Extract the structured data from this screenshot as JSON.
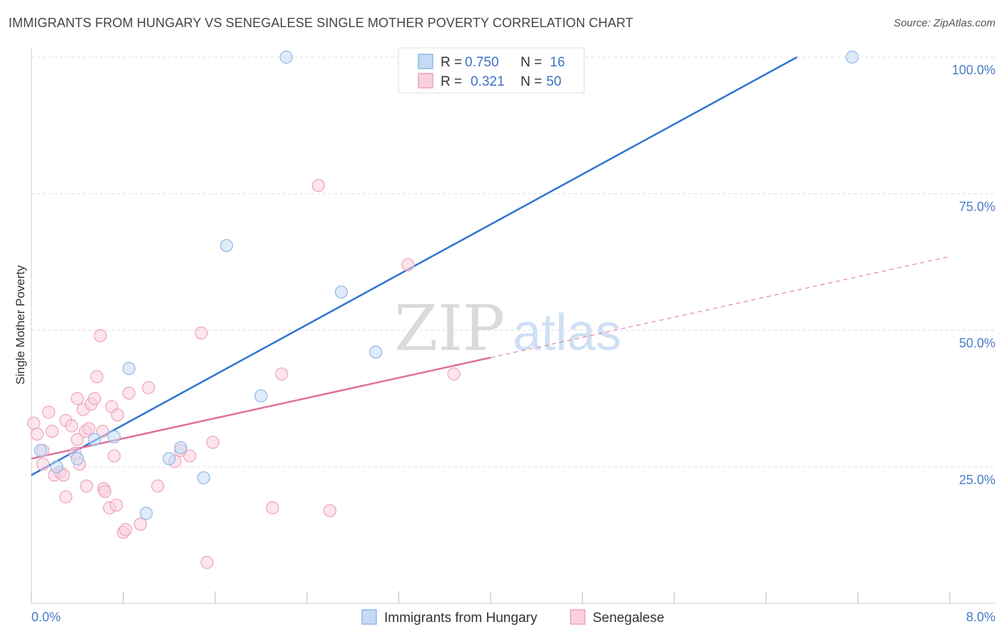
{
  "chart_data": {
    "type": "scatter",
    "title": "IMMIGRANTS FROM HUNGARY VS SENEGALESE SINGLE MOTHER POVERTY CORRELATION CHART",
    "source": "Source: ZipAtlas.com",
    "xlabel": "",
    "ylabel": "Single Mother Poverty",
    "xlim": [
      0,
      8
    ],
    "ylim": [
      0,
      100
    ],
    "x_tick_labels": [
      "0.0%",
      "8.0%"
    ],
    "y_ticks": [
      25,
      50,
      75,
      100
    ],
    "y_tick_labels": [
      "25.0%",
      "50.0%",
      "75.0%",
      "100.0%"
    ],
    "watermark": {
      "zip": "ZIP",
      "atlas": "atlas"
    },
    "legend": {
      "r_label": "R =",
      "n_label": "N =",
      "entries": [
        {
          "r": "0.750",
          "n": "16"
        },
        {
          "r": "0.321",
          "n": "50"
        }
      ]
    },
    "series": [
      {
        "name": "Immigrants from Hungary",
        "color": "#8fb8e8",
        "fill": "#c5daf4",
        "line_color": "#2f74d0",
        "trend": {
          "x0": 0,
          "y0": 23.5,
          "x1": 6.67,
          "y1": 100,
          "dashed_to": null
        },
        "points": [
          [
            0.08,
            28
          ],
          [
            0.22,
            25
          ],
          [
            0.4,
            26.5
          ],
          [
            0.55,
            30
          ],
          [
            0.72,
            30.5
          ],
          [
            0.85,
            43
          ],
          [
            1.0,
            16.5
          ],
          [
            1.2,
            26.5
          ],
          [
            1.3,
            28.5
          ],
          [
            1.5,
            23
          ],
          [
            1.7,
            65.5
          ],
          [
            2.0,
            38
          ],
          [
            2.22,
            100
          ],
          [
            2.7,
            57
          ],
          [
            3.0,
            46
          ],
          [
            7.15,
            100
          ]
        ]
      },
      {
        "name": "Senegalese",
        "color": "#f0a3bc",
        "fill": "#f9d0de",
        "line_color": "#e0709a",
        "trend": {
          "x0": 0,
          "y0": 26.5,
          "x1": 4.0,
          "y1": 45,
          "dashed_to": {
            "x": 8.0,
            "y": 63.5
          }
        },
        "points": [
          [
            0.02,
            33
          ],
          [
            0.05,
            31
          ],
          [
            0.1,
            25.5
          ],
          [
            0.1,
            28
          ],
          [
            0.15,
            35
          ],
          [
            0.18,
            31.5
          ],
          [
            0.2,
            23.5
          ],
          [
            0.25,
            24
          ],
          [
            0.28,
            23.5
          ],
          [
            0.3,
            19.5
          ],
          [
            0.3,
            33.5
          ],
          [
            0.35,
            32.5
          ],
          [
            0.38,
            27.5
          ],
          [
            0.4,
            30
          ],
          [
            0.4,
            37.5
          ],
          [
            0.42,
            25.5
          ],
          [
            0.45,
            35.5
          ],
          [
            0.47,
            31.5
          ],
          [
            0.48,
            21.5
          ],
          [
            0.5,
            32
          ],
          [
            0.52,
            36.5
          ],
          [
            0.55,
            37.5
          ],
          [
            0.57,
            41.5
          ],
          [
            0.6,
            49
          ],
          [
            0.62,
            31.5
          ],
          [
            0.63,
            21
          ],
          [
            0.64,
            20.5
          ],
          [
            0.68,
            17.5
          ],
          [
            0.7,
            36
          ],
          [
            0.72,
            27
          ],
          [
            0.74,
            18
          ],
          [
            0.75,
            34.5
          ],
          [
            0.8,
            13
          ],
          [
            0.82,
            13.5
          ],
          [
            0.85,
            38.5
          ],
          [
            0.95,
            14.5
          ],
          [
            1.02,
            39.5
          ],
          [
            1.1,
            21.5
          ],
          [
            1.25,
            26
          ],
          [
            1.3,
            28
          ],
          [
            1.38,
            27
          ],
          [
            1.48,
            49.5
          ],
          [
            1.53,
            7.5
          ],
          [
            1.58,
            29.5
          ],
          [
            2.1,
            17.5
          ],
          [
            2.18,
            42
          ],
          [
            2.5,
            76.5
          ],
          [
            2.6,
            17
          ],
          [
            3.28,
            62
          ],
          [
            3.68,
            42
          ]
        ]
      }
    ]
  }
}
